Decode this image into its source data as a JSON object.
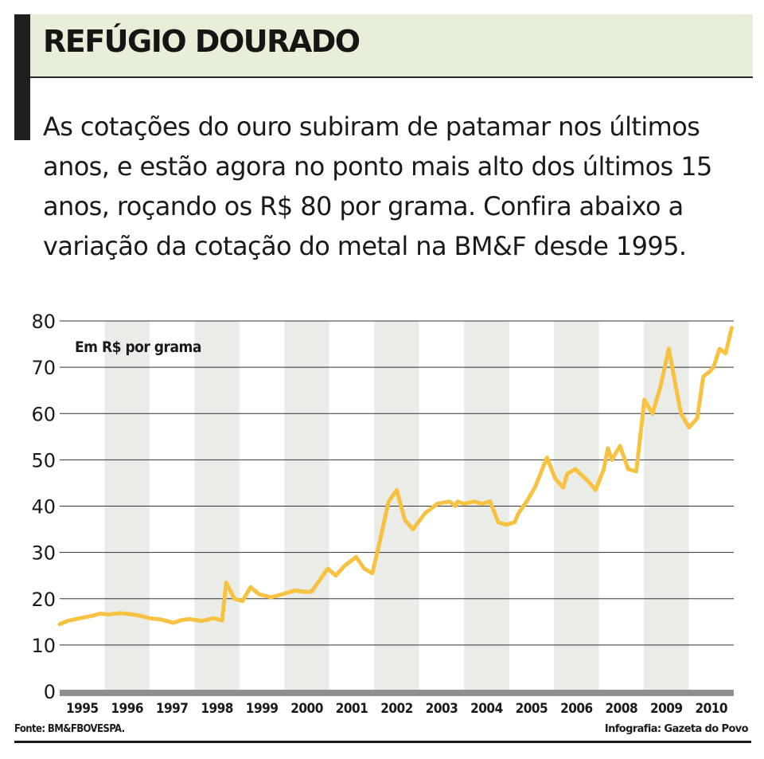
{
  "chart_data": {
    "type": "line",
    "title": "REFÚGIO DOURADO",
    "subtitle": "As cotações do ouro subiram de patamar nos últimos anos, e estão agora no ponto mais alto dos últimos 15 anos, roçando os R$ 80 por grama. Confira abaixo a variação da cotação do metal na BM&F desde 1995.",
    "unit_label": "Em R$ por grama",
    "ylim": [
      0,
      80
    ],
    "yticks": [
      "0",
      "10",
      "20",
      "30",
      "40",
      "50",
      "60",
      "70",
      "80"
    ],
    "xtick_labels": [
      "1995",
      "1996",
      "1997",
      "1998",
      "1999",
      "2000",
      "2001",
      "2002",
      "2003",
      "2004",
      "2005",
      "2006",
      "2008",
      "2009",
      "2010"
    ],
    "grid": "horizontal",
    "alternating_year_bands": true,
    "line_color": "#f7c242",
    "band_color": "#e9ece7",
    "series": [
      {
        "x": [
          1995.0,
          1995.2,
          1995.5,
          1995.8,
          1996.0,
          1996.2,
          1996.5,
          1996.8,
          1997.0,
          1997.2,
          1997.5,
          1997.8,
          1998.0,
          1998.2,
          1998.5,
          1998.8,
          1999.0,
          1999.1,
          1999.3,
          1999.5,
          1999.7,
          1999.9,
          2000.2,
          2000.5,
          2000.8,
          2001.0,
          2001.2,
          2001.4,
          2001.6,
          2001.8,
          2002.0,
          2002.3,
          2002.5,
          2002.7,
          2002.9,
          2003.1,
          2003.3,
          2003.5,
          2003.7,
          2004.0,
          2004.3,
          2004.6,
          2004.75,
          2004.8,
          2004.95,
          2005.2,
          2005.4,
          2005.6,
          2005.8,
          2006.0,
          2006.2,
          2006.3,
          2006.5,
          2006.7,
          2007.0,
          2007.2,
          2007.4,
          2007.5,
          2007.7,
          2008.0,
          2008.2,
          2008.4,
          2008.5,
          2008.6,
          2008.8,
          2009.0,
          2009.2,
          2009.4,
          2009.6,
          2009.8,
          2010.0,
          2010.2,
          2010.3,
          2010.5,
          2010.7,
          2010.85,
          2011.0,
          2011.1,
          2011.25,
          2011.4,
          2011.55
        ],
        "y": [
          14.5,
          15.2,
          15.8,
          16.3,
          16.8,
          16.6,
          16.9,
          16.6,
          16.3,
          15.8,
          15.5,
          14.8,
          15.4,
          15.6,
          15.2,
          15.8,
          15.3,
          23.5,
          20.0,
          19.5,
          22.5,
          21.0,
          20.3,
          21.0,
          21.8,
          21.5,
          21.5,
          24.0,
          26.5,
          25.0,
          27.0,
          29.0,
          26.5,
          25.5,
          33.0,
          41.0,
          43.5,
          37.0,
          35.0,
          38.5,
          40.5,
          41.0,
          40.0,
          41.0,
          40.5,
          41.0,
          40.5,
          41.0,
          36.5,
          36.0,
          36.5,
          38.5,
          41.0,
          44.0,
          50.5,
          46.0,
          44.0,
          47.0,
          48.0,
          45.5,
          43.5,
          48.0,
          52.5,
          50.0,
          53.0,
          48.0,
          47.5,
          63.0,
          60.0,
          66.0,
          74.0,
          64.5,
          60.0,
          57.0,
          59.0,
          68.0,
          69.0,
          70.0,
          74.0,
          73.0,
          78.5
        ]
      }
    ]
  },
  "footer": {
    "source": "Fonte: BM&FBOVESPA.",
    "credit": "Infografia: Gazeta do Povo"
  }
}
